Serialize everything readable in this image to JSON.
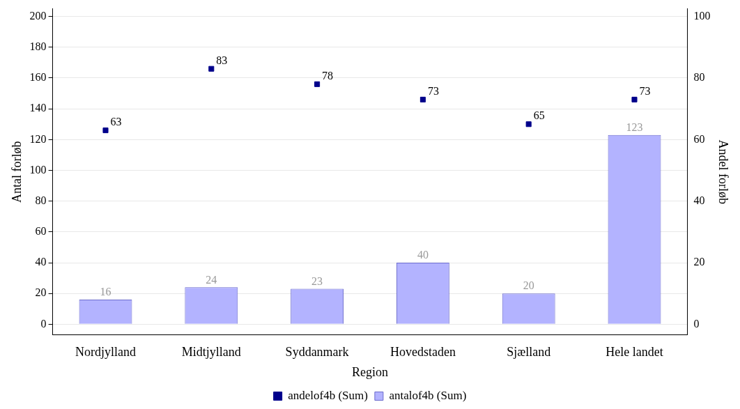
{
  "chart_data": {
    "type": "bar",
    "xlabel": "Region",
    "ylabel": "Antal forløb",
    "y2label": "Andel forløb",
    "categories": [
      "Nordjylland",
      "Midtjylland",
      "Syddanmark",
      "Hovedstaden",
      "Sjælland",
      "Hele landet"
    ],
    "series": [
      {
        "name": "andelof4b (Sum)",
        "type": "scatter",
        "axis": "y2",
        "color": "#00008b",
        "values": [
          63,
          83,
          78,
          73,
          65,
          73
        ]
      },
      {
        "name": "antalof4b (Sum)",
        "color": "#b3b3ff",
        "values": [
          16,
          24,
          23,
          40,
          20,
          123
        ]
      }
    ],
    "ylim": [
      -7,
      205
    ],
    "yticks": [
      0,
      20,
      40,
      60,
      80,
      100,
      120,
      140,
      160,
      180,
      200
    ],
    "y2lim": [
      -3.5,
      102.5
    ],
    "y2ticks": [
      0,
      20,
      40,
      60,
      80,
      100
    ],
    "grid": "y",
    "legend": "bottom",
    "marker": "square",
    "data_labels": true
  }
}
